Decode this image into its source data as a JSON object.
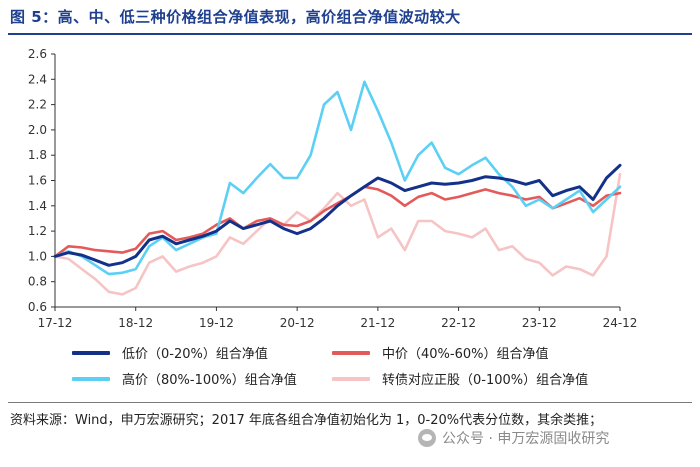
{
  "header": {
    "title": "图 5：高、中、低三种价格组合净值表现，高价组合净值波动较大"
  },
  "colors": {
    "title": "#1f3f8f",
    "low": "#14318a",
    "mid": "#e35a5a",
    "high": "#5bd0f4",
    "cb": "#f6c4c4"
  },
  "legend": {
    "low": "低价（0-20%）组合净值",
    "mid": "中价（40%-60%）组合净值",
    "high": "高价（80%-100%）组合净值",
    "cb": "转债对应正股（0-100%）组合净值"
  },
  "source": "资料来源：Wind，申万宏源研究；2017 年底各组合净值初始化为 1，0-20%代表分位数，其余类推；",
  "watermark": {
    "icon": "wechat-icon",
    "text": "公众号 · 申万宏源固收研究"
  },
  "chart_data": {
    "type": "line",
    "x_ticks": [
      "17-12",
      "18-12",
      "19-12",
      "20-12",
      "21-12",
      "22-12",
      "23-12",
      "24-12"
    ],
    "x_range": [
      "2017-12",
      "2024-12"
    ],
    "ylim": [
      0.6,
      2.6
    ],
    "y_ticks": [
      "0.6",
      "0.8",
      "1.0",
      "1.2",
      "1.4",
      "1.6",
      "1.8",
      "2.0",
      "2.2",
      "2.4",
      "2.6"
    ],
    "legend_position": "bottom",
    "grid": false,
    "x": [
      "2017-12",
      "2018-02",
      "2018-04",
      "2018-06",
      "2018-08",
      "2018-10",
      "2018-12",
      "2019-02",
      "2019-04",
      "2019-06",
      "2019-08",
      "2019-10",
      "2019-12",
      "2020-02",
      "2020-04",
      "2020-06",
      "2020-08",
      "2020-10",
      "2020-12",
      "2021-02",
      "2021-04",
      "2021-06",
      "2021-08",
      "2021-10",
      "2021-12",
      "2022-02",
      "2022-04",
      "2022-06",
      "2022-08",
      "2022-10",
      "2022-12",
      "2023-02",
      "2023-04",
      "2023-06",
      "2023-08",
      "2023-10",
      "2023-12",
      "2024-02",
      "2024-04",
      "2024-06",
      "2024-08",
      "2024-10",
      "2024-12"
    ],
    "series": [
      {
        "name": "低价（0-20%）组合净值",
        "color_key": "low",
        "values": [
          1.0,
          1.03,
          1.01,
          0.97,
          0.93,
          0.95,
          1.0,
          1.13,
          1.16,
          1.1,
          1.13,
          1.16,
          1.2,
          1.28,
          1.22,
          1.25,
          1.28,
          1.22,
          1.18,
          1.22,
          1.3,
          1.4,
          1.48,
          1.55,
          1.62,
          1.58,
          1.52,
          1.55,
          1.58,
          1.57,
          1.58,
          1.6,
          1.63,
          1.62,
          1.6,
          1.57,
          1.6,
          1.48,
          1.52,
          1.55,
          1.45,
          1.62,
          1.72
        ]
      },
      {
        "name": "中价（40%-60%）组合净值",
        "color_key": "mid",
        "values": [
          1.0,
          1.08,
          1.07,
          1.05,
          1.04,
          1.03,
          1.06,
          1.18,
          1.2,
          1.13,
          1.15,
          1.18,
          1.25,
          1.3,
          1.22,
          1.28,
          1.3,
          1.25,
          1.24,
          1.28,
          1.36,
          1.42,
          1.48,
          1.55,
          1.53,
          1.48,
          1.4,
          1.47,
          1.5,
          1.45,
          1.47,
          1.5,
          1.53,
          1.5,
          1.48,
          1.45,
          1.47,
          1.38,
          1.42,
          1.46,
          1.4,
          1.48,
          1.5
        ]
      },
      {
        "name": "高价（80%-100%）组合净值",
        "color_key": "high",
        "values": [
          1.0,
          1.04,
          1.0,
          0.93,
          0.86,
          0.87,
          0.9,
          1.08,
          1.15,
          1.05,
          1.1,
          1.15,
          1.18,
          1.58,
          1.5,
          1.62,
          1.73,
          1.62,
          1.62,
          1.8,
          2.2,
          2.3,
          2.0,
          2.38,
          2.15,
          1.9,
          1.6,
          1.8,
          1.9,
          1.7,
          1.65,
          1.72,
          1.78,
          1.65,
          1.55,
          1.4,
          1.45,
          1.38,
          1.45,
          1.52,
          1.35,
          1.45,
          1.55
        ]
      },
      {
        "name": "转债对应正股（0-100%）组合净值",
        "color_key": "cb",
        "values": [
          1.0,
          0.98,
          0.9,
          0.82,
          0.72,
          0.7,
          0.75,
          0.95,
          1.0,
          0.88,
          0.92,
          0.95,
          1.0,
          1.15,
          1.1,
          1.2,
          1.3,
          1.25,
          1.35,
          1.28,
          1.38,
          1.5,
          1.4,
          1.45,
          1.15,
          1.22,
          1.05,
          1.28,
          1.28,
          1.2,
          1.18,
          1.15,
          1.22,
          1.05,
          1.08,
          0.98,
          0.95,
          0.85,
          0.92,
          0.9,
          0.85,
          1.0,
          1.65
        ]
      }
    ]
  }
}
